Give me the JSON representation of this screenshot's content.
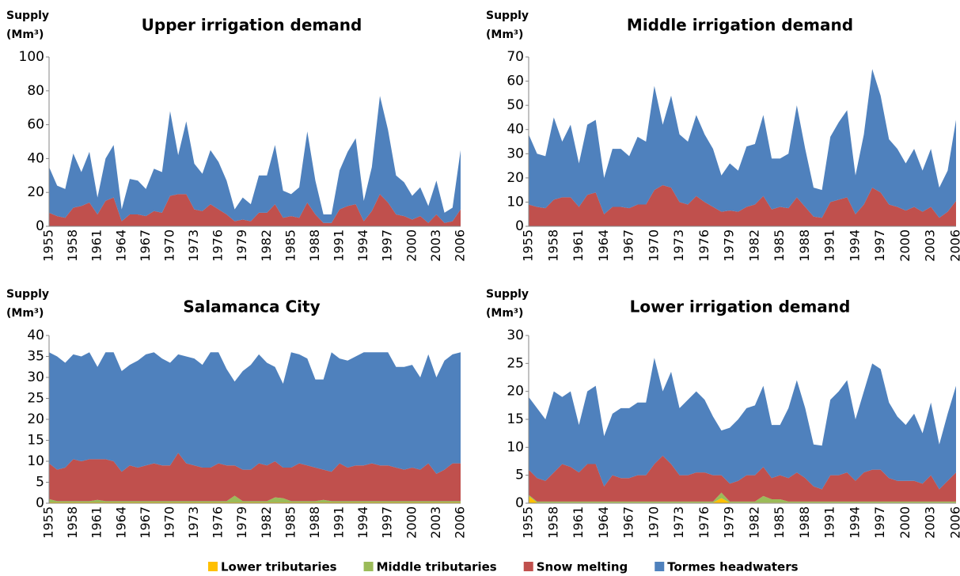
{
  "chart_data": [
    {
      "type": "stacked_area",
      "title": "Upper irrigation demand",
      "ylabel": [
        "Supply",
        "(Mm³)"
      ],
      "categories": [
        "1955",
        null,
        null,
        "1958",
        null,
        null,
        "1961",
        null,
        null,
        "1964",
        null,
        null,
        "1967",
        null,
        null,
        "1970",
        null,
        null,
        "1973",
        null,
        null,
        "1976",
        null,
        null,
        "1979",
        null,
        null,
        "1982",
        null,
        null,
        "1985",
        null,
        null,
        "1988",
        null,
        null,
        "1991",
        null,
        null,
        "1994",
        null,
        null,
        "1997",
        null,
        null,
        "2000",
        null,
        null,
        "2003",
        null,
        null,
        "2006"
      ],
      "ylim": [
        0,
        100
      ],
      "yticks": [
        0,
        20,
        40,
        60,
        80,
        100
      ],
      "series": [
        {
          "name": "Snow melting",
          "color": "#c0504d",
          "values": [
            8,
            6,
            5,
            11,
            12,
            14,
            7,
            15,
            17,
            3,
            7,
            7,
            6,
            9,
            8,
            18,
            19,
            19,
            10,
            9,
            13,
            10,
            7,
            3,
            4,
            3,
            8,
            8,
            13,
            5,
            6,
            5,
            14,
            7,
            2,
            2,
            10,
            12,
            13,
            3,
            9,
            19,
            14,
            7,
            6,
            4,
            6,
            2,
            7,
            2,
            3,
            10
          ]
        },
        {
          "name": "Tormes headwaters",
          "color": "#4f81bd",
          "values": [
            27,
            18,
            17,
            32,
            20,
            30,
            10,
            25,
            31,
            7,
            21,
            20,
            16,
            25,
            24,
            50,
            23,
            43,
            27,
            22,
            32,
            28,
            20,
            7,
            13,
            10,
            22,
            22,
            35,
            16,
            13,
            18,
            42,
            20,
            5,
            5,
            23,
            32,
            39,
            12,
            26,
            58,
            43,
            23,
            20,
            14,
            17,
            10,
            20,
            6,
            8,
            35
          ]
        }
      ]
    },
    {
      "type": "stacked_area",
      "title": "Middle irrigation demand",
      "ylabel": [
        "Supply",
        "(Mm³)"
      ],
      "categories": [
        "1955",
        null,
        null,
        "1958",
        null,
        null,
        "1961",
        null,
        null,
        "1964",
        null,
        null,
        "1967",
        null,
        null,
        "1970",
        null,
        null,
        "1973",
        null,
        null,
        "1976",
        null,
        null,
        "1979",
        null,
        null,
        "1982",
        null,
        null,
        "1985",
        null,
        null,
        "1988",
        null,
        null,
        "1991",
        null,
        null,
        "1994",
        null,
        null,
        "1997",
        null,
        null,
        "2000",
        null,
        null,
        "2003",
        null,
        null,
        "2006"
      ],
      "ylim": [
        0,
        70
      ],
      "yticks": [
        0,
        10,
        20,
        30,
        40,
        50,
        60,
        70
      ],
      "series": [
        {
          "name": "Snow melting",
          "color": "#c0504d",
          "values": [
            9,
            8,
            7.5,
            11,
            12,
            12,
            8,
            13,
            14,
            5,
            8,
            8,
            7.5,
            9,
            9,
            15,
            17,
            16,
            10,
            9,
            12.5,
            10,
            8,
            6,
            6.5,
            6,
            8,
            9,
            12.5,
            7,
            8,
            7.5,
            12,
            8,
            4,
            3.5,
            10,
            11,
            12,
            5,
            9,
            16,
            14,
            9,
            8,
            6.5,
            8,
            6,
            8,
            3.5,
            6,
            10.5
          ]
        },
        {
          "name": "Tormes headwaters",
          "color": "#4f81bd",
          "values": [
            29,
            22,
            21.5,
            34,
            23,
            30,
            18,
            29,
            30,
            15,
            24,
            24,
            21.5,
            28,
            26,
            43,
            25,
            38,
            28,
            26,
            33.5,
            28,
            24,
            15,
            19.5,
            17,
            25,
            25,
            33.5,
            21,
            20,
            22.5,
            38,
            24,
            12,
            11.5,
            27,
            32,
            36,
            16,
            29,
            49,
            40,
            27,
            24,
            19.5,
            24,
            17,
            24,
            12.5,
            17,
            33.5
          ]
        }
      ]
    },
    {
      "type": "stacked_area",
      "title": "Salamanca City",
      "ylabel": [
        "Supply",
        "(Mm³)"
      ],
      "categories": [
        "1955",
        null,
        null,
        "1958",
        null,
        null,
        "1961",
        null,
        null,
        "1964",
        null,
        null,
        "1967",
        null,
        null,
        "1970",
        null,
        null,
        "1973",
        null,
        null,
        "1976",
        null,
        null,
        "1979",
        null,
        null,
        "1982",
        null,
        null,
        "1985",
        null,
        null,
        "1988",
        null,
        null,
        "1991",
        null,
        null,
        "1994",
        null,
        null,
        "1997",
        null,
        null,
        "2000",
        null,
        null,
        "2003",
        null,
        null,
        "2006"
      ],
      "ylim": [
        0,
        40
      ],
      "yticks": [
        0,
        5,
        10,
        15,
        20,
        25,
        30,
        35,
        40
      ],
      "series": [
        {
          "name": "Lower tributaries",
          "color": "#ffc000",
          "values": [
            0.2,
            0.2,
            0.2,
            0.2,
            0.2,
            0.2,
            0.2,
            0.2,
            0.2,
            0.2,
            0.2,
            0.2,
            0.2,
            0.2,
            0.2,
            0.2,
            0.2,
            0.2,
            0.2,
            0.2,
            0.2,
            0.2,
            0.2,
            0.2,
            0.2,
            0.2,
            0.2,
            0.2,
            0.2,
            0.2,
            0.2,
            0.2,
            0.2,
            0.2,
            0.2,
            0.2,
            0.2,
            0.2,
            0.2,
            0.2,
            0.2,
            0.2,
            0.2,
            0.2,
            0.2,
            0.2,
            0.2,
            0.2,
            0.2,
            0.2,
            0.2,
            0.2
          ]
        },
        {
          "name": "Middle tributaries",
          "color": "#9bbb59",
          "values": [
            0.8,
            0.3,
            0.3,
            0.3,
            0.3,
            0.3,
            0.6,
            0.3,
            0.3,
            0.3,
            0.3,
            0.3,
            0.3,
            0.3,
            0.3,
            0.3,
            0.3,
            0.3,
            0.3,
            0.3,
            0.3,
            0.3,
            0.3,
            1.6,
            0.3,
            0.3,
            0.3,
            0.3,
            1.2,
            1.0,
            0.3,
            0.3,
            0.3,
            0.3,
            0.6,
            0.3,
            0.3,
            0.3,
            0.3,
            0.3,
            0.3,
            0.3,
            0.3,
            0.3,
            0.3,
            0.3,
            0.3,
            0.3,
            0.3,
            0.3,
            0.3,
            0.3
          ]
        },
        {
          "name": "Snow melting",
          "color": "#c0504d",
          "values": [
            8.5,
            7.5,
            8,
            10,
            9.5,
            10,
            9.7,
            10,
            9.5,
            7,
            8.5,
            8,
            8.5,
            9,
            8.5,
            8.5,
            11.5,
            9,
            8.5,
            8,
            8,
            9,
            8.5,
            7.2,
            7.5,
            7.5,
            9,
            8.5,
            8.6,
            7.3,
            8,
            9,
            8.5,
            8,
            7.2,
            7,
            9,
            8,
            8.5,
            8.5,
            9,
            8.5,
            8.5,
            8,
            7.5,
            8,
            7.5,
            9,
            6.5,
            7.5,
            9,
            9
          ]
        },
        {
          "name": "Tormes headwaters",
          "color": "#4f81bd",
          "values": [
            26.5,
            27,
            25,
            25,
            25,
            25.5,
            22,
            25.5,
            26,
            24,
            24,
            25.5,
            26.5,
            26.5,
            25.5,
            24.5,
            23.5,
            25.5,
            25.5,
            24.5,
            27.5,
            26.5,
            23,
            20,
            23.5,
            25,
            26,
            24.5,
            22.5,
            20,
            27.5,
            26,
            25.5,
            21,
            21.5,
            28.5,
            25,
            25.5,
            26,
            27,
            26.5,
            27,
            27,
            24,
            24.5,
            24.5,
            22,
            26,
            23,
            26,
            26,
            26.5
          ]
        }
      ]
    },
    {
      "type": "stacked_area",
      "title": "Lower irrigation demand",
      "ylabel": [
        "Supply",
        "(Mm³)"
      ],
      "categories": [
        "1955",
        null,
        null,
        "1958",
        null,
        null,
        "1961",
        null,
        null,
        "1964",
        null,
        null,
        "1967",
        null,
        null,
        "1970",
        null,
        null,
        "1973",
        null,
        null,
        "1976",
        null,
        null,
        "1979",
        null,
        null,
        "1982",
        null,
        null,
        "1985",
        null,
        null,
        "1988",
        null,
        null,
        "1991",
        null,
        null,
        "1994",
        null,
        null,
        "1997",
        null,
        null,
        "2000",
        null,
        null,
        "2003",
        null,
        null,
        "2006"
      ],
      "ylim": [
        0,
        30
      ],
      "yticks": [
        0,
        5,
        10,
        15,
        20,
        25,
        30
      ],
      "series": [
        {
          "name": "Lower tributaries",
          "color": "#ffc000",
          "values": [
            1.3,
            0.1,
            0.1,
            0.1,
            0.1,
            0.1,
            0.1,
            0.1,
            0.1,
            0.1,
            0.1,
            0.1,
            0.1,
            0.1,
            0.1,
            0.1,
            0.1,
            0.1,
            0.1,
            0.1,
            0.1,
            0.1,
            0.1,
            0.9,
            0.1,
            0.1,
            0.1,
            0.1,
            0.1,
            0.1,
            0.1,
            0.1,
            0.1,
            0.1,
            0.1,
            0.1,
            0.1,
            0.1,
            0.1,
            0.1,
            0.1,
            0.1,
            0.1,
            0.1,
            0.1,
            0.1,
            0.1,
            0.1,
            0.1,
            0.1,
            0.1,
            0.1
          ]
        },
        {
          "name": "Middle tributaries",
          "color": "#9bbb59",
          "values": [
            0.2,
            0.2,
            0.2,
            0.2,
            0.2,
            0.2,
            0.2,
            0.2,
            0.2,
            0.2,
            0.2,
            0.2,
            0.2,
            0.2,
            0.2,
            0.2,
            0.2,
            0.2,
            0.2,
            0.2,
            0.2,
            0.2,
            0.2,
            1.0,
            0.2,
            0.2,
            0.2,
            0.2,
            1.2,
            0.6,
            0.6,
            0.2,
            0.2,
            0.2,
            0.2,
            0.2,
            0.2,
            0.2,
            0.2,
            0.2,
            0.2,
            0.2,
            0.2,
            0.2,
            0.2,
            0.2,
            0.2,
            0.2,
            0.2,
            0.2,
            0.2,
            0.2
          ]
        },
        {
          "name": "Snow melting",
          "color": "#c0504d",
          "values": [
            4.5,
            4.2,
            3.7,
            5.2,
            6.7,
            6.2,
            5.2,
            6.7,
            6.7,
            2.7,
            4.7,
            4.2,
            4.2,
            4.7,
            4.7,
            6.7,
            8.2,
            6.7,
            4.7,
            4.7,
            5.2,
            5.2,
            4.7,
            3.1,
            3.2,
            3.7,
            4.7,
            4.7,
            5.2,
            3.8,
            4.3,
            4.2,
            5.2,
            4.2,
            2.7,
            2.2,
            4.7,
            4.7,
            5.2,
            3.7,
            5.2,
            5.7,
            5.7,
            4.2,
            3.7,
            3.7,
            3.7,
            3.2,
            4.7,
            2.2,
            3.7,
            5.2
          ]
        },
        {
          "name": "Tormes headwaters",
          "color": "#4f81bd",
          "values": [
            13,
            12.5,
            11,
            14.5,
            12,
            13.5,
            8.5,
            13,
            14,
            9,
            11,
            12.5,
            12.5,
            13,
            13,
            19,
            11.5,
            16.5,
            12,
            13.5,
            14.5,
            13,
            10.5,
            8,
            10,
            11,
            12,
            12.5,
            14.5,
            9.5,
            9,
            12.5,
            16.5,
            12.5,
            7.5,
            7.8,
            13.5,
            15,
            16.5,
            11,
            14.5,
            19,
            18,
            13.5,
            11.5,
            10,
            12,
            9,
            13,
            8,
            12,
            15.5
          ]
        }
      ]
    }
  ]
}
